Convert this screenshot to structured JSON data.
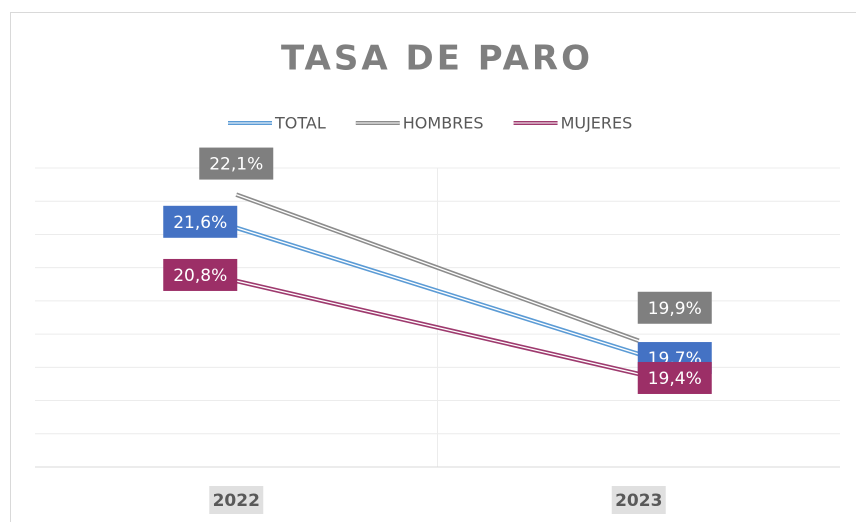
{
  "chart_data": {
    "type": "line",
    "title": "TASA DE PARO",
    "categories": [
      "2022",
      "2023"
    ],
    "series": [
      {
        "name": "TOTAL",
        "color": "#5b9bd5",
        "label_color": "#4472c4",
        "values": [
          21.6,
          19.7
        ],
        "value_labels": [
          "21,6%",
          "19,7%"
        ]
      },
      {
        "name": "HOMBRES",
        "color": "#8c8c8c",
        "label_color": "#7f7f7f",
        "values": [
          22.1,
          19.9
        ],
        "value_labels": [
          "22,1%",
          "19,9%"
        ]
      },
      {
        "name": "MUJERES",
        "color": "#9e3a6e",
        "label_color": "#9c2f67",
        "values": [
          20.8,
          19.4
        ],
        "value_labels": [
          "20,8%",
          "19,4%"
        ]
      }
    ],
    "ylim": [
      18,
      22.5
    ],
    "yticks": [
      18,
      18.5,
      19,
      19.5,
      20,
      20.5,
      21,
      21.5,
      22,
      22.5
    ],
    "grid": true
  }
}
